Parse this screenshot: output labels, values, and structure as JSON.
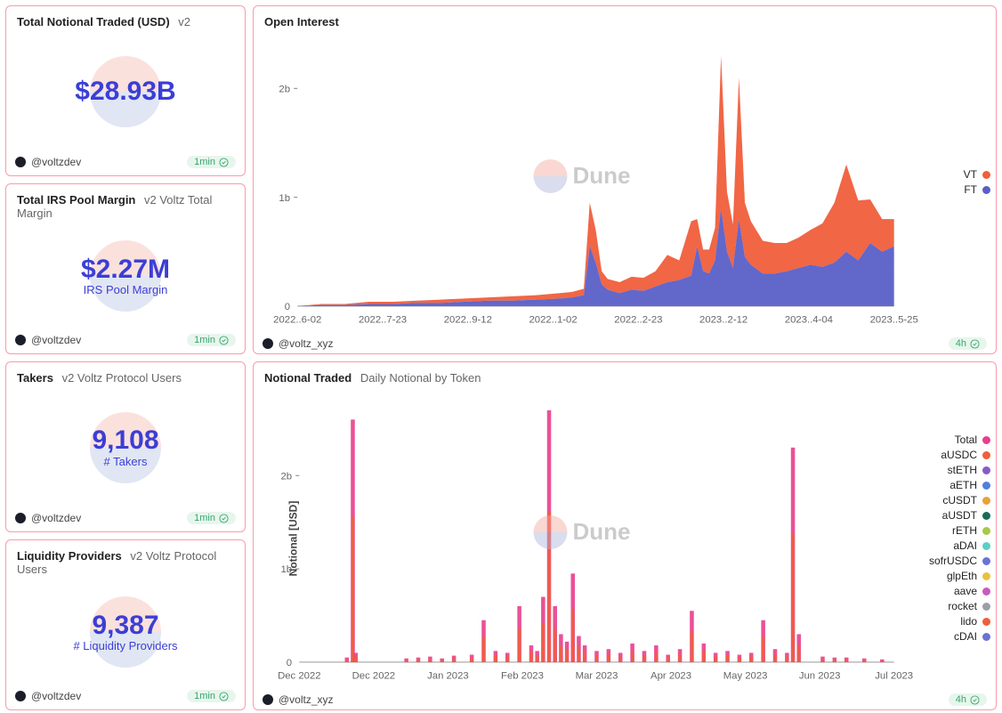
{
  "authors": {
    "dev": "@voltzdev",
    "xyz": "@voltz_xyz"
  },
  "refresh": {
    "short": "1min",
    "long": "4h"
  },
  "colors": {
    "accent": "#3b3ed6",
    "card_border": "#f99ca7",
    "grid": "#e8e8e8",
    "vt": "#f05e3b",
    "ft": "#5a5fc7",
    "refresh_bg": "#e7f6ed",
    "refresh_fg": "#3aa56e"
  },
  "stat_cards": [
    {
      "title": "Total Notional Traded (USD)",
      "subtitle": "v2",
      "value": "$28.93B",
      "label": ""
    },
    {
      "title": "Total IRS Pool Margin",
      "subtitle": "v2 Voltz Total Margin",
      "value": "$2.27M",
      "label": "IRS Pool Margin"
    },
    {
      "title": "Takers",
      "subtitle": "v2 Voltz Protocol Users",
      "value": "9,108",
      "label": "# Takers"
    },
    {
      "title": "Liquidity Providers",
      "subtitle": "v2 Voltz Protocol Users",
      "value": "9,387",
      "label": "# Liquidity Providers"
    }
  ],
  "open_interest": {
    "title": "Open Interest",
    "type": "area",
    "ylim": [
      0,
      2.4
    ],
    "yticks": [
      {
        "v": 1,
        "label": "1b"
      },
      {
        "v": 2,
        "label": "2b"
      }
    ],
    "xticks": [
      "2022..6-02",
      "2022..7-23",
      "2022..9-12",
      "2022..1-02",
      "2022..2-23",
      "2023..2-12",
      "2023..4-04",
      "2023..5-25"
    ],
    "legend": [
      {
        "name": "VT",
        "color": "#f05e3b"
      },
      {
        "name": "FT",
        "color": "#5a5fc7"
      }
    ],
    "series": {
      "comment": "y in billions; FT is lower band, VT is stacked on top (area reaches ft+vt)",
      "x": [
        0,
        0.04,
        0.08,
        0.12,
        0.16,
        0.2,
        0.24,
        0.28,
        0.32,
        0.36,
        0.4,
        0.44,
        0.46,
        0.48,
        0.49,
        0.5,
        0.51,
        0.52,
        0.54,
        0.56,
        0.58,
        0.6,
        0.62,
        0.64,
        0.66,
        0.67,
        0.68,
        0.69,
        0.7,
        0.71,
        0.72,
        0.73,
        0.74,
        0.75,
        0.76,
        0.77,
        0.78,
        0.8,
        0.82,
        0.84,
        0.86,
        0.88,
        0.9,
        0.92,
        0.94,
        0.96,
        0.98,
        1.0
      ],
      "ft": [
        0.0,
        0.01,
        0.01,
        0.02,
        0.02,
        0.03,
        0.03,
        0.04,
        0.05,
        0.05,
        0.06,
        0.07,
        0.08,
        0.1,
        0.55,
        0.4,
        0.2,
        0.15,
        0.12,
        0.15,
        0.14,
        0.18,
        0.22,
        0.24,
        0.28,
        0.55,
        0.32,
        0.3,
        0.42,
        0.9,
        0.5,
        0.35,
        0.8,
        0.45,
        0.38,
        0.34,
        0.3,
        0.3,
        0.32,
        0.35,
        0.38,
        0.36,
        0.4,
        0.5,
        0.42,
        0.58,
        0.5,
        0.55
      ],
      "vt": [
        0.0,
        0.01,
        0.01,
        0.02,
        0.02,
        0.02,
        0.03,
        0.03,
        0.03,
        0.04,
        0.04,
        0.05,
        0.05,
        0.06,
        0.4,
        0.3,
        0.12,
        0.1,
        0.1,
        0.12,
        0.12,
        0.14,
        0.25,
        0.18,
        0.5,
        0.25,
        0.2,
        0.22,
        0.3,
        1.4,
        0.55,
        0.4,
        1.3,
        0.5,
        0.4,
        0.35,
        0.3,
        0.28,
        0.26,
        0.28,
        0.32,
        0.4,
        0.55,
        0.8,
        0.55,
        0.4,
        0.3,
        0.25
      ]
    }
  },
  "notional_traded": {
    "title": "Notional Traded",
    "subtitle": "Daily Notional by Token",
    "type": "bar",
    "ylabel": "Notional [USD]",
    "ylim": [
      0,
      2.8
    ],
    "yticks": [
      {
        "v": 1,
        "label": "1b"
      },
      {
        "v": 2,
        "label": "2b"
      }
    ],
    "xticks": [
      "Dec 2022",
      "Dec 2022",
      "Jan 2023",
      "Feb 2023",
      "Mar 2023",
      "Apr 2023",
      "May 2023",
      "Jun 2023",
      "Jul 2023"
    ],
    "legend": [
      {
        "name": "Total",
        "color": "#e83e8c"
      },
      {
        "name": "aUSDC",
        "color": "#f05e3b"
      },
      {
        "name": "stETH",
        "color": "#8a59c7"
      },
      {
        "name": "aETH",
        "color": "#4f7de0"
      },
      {
        "name": "cUSDT",
        "color": "#e9a13a"
      },
      {
        "name": "aUSDT",
        "color": "#1a6b5c"
      },
      {
        "name": "rETH",
        "color": "#a7c94a"
      },
      {
        "name": "aDAI",
        "color": "#5bcfc0"
      },
      {
        "name": "sofrUSDC",
        "color": "#6a72d6"
      },
      {
        "name": "glpEth",
        "color": "#e9c23a"
      },
      {
        "name": "aave",
        "color": "#c75bbd"
      },
      {
        "name": "rocket",
        "color": "#9aa0a6"
      },
      {
        "name": "lido",
        "color": "#f05e3b"
      },
      {
        "name": "cDAI",
        "color": "#6a72d6"
      }
    ],
    "bars": {
      "x": [
        0.08,
        0.09,
        0.095,
        0.18,
        0.2,
        0.22,
        0.24,
        0.26,
        0.29,
        0.31,
        0.33,
        0.35,
        0.37,
        0.39,
        0.4,
        0.41,
        0.42,
        0.43,
        0.44,
        0.45,
        0.46,
        0.47,
        0.48,
        0.5,
        0.52,
        0.54,
        0.56,
        0.58,
        0.6,
        0.62,
        0.64,
        0.66,
        0.68,
        0.7,
        0.72,
        0.74,
        0.76,
        0.78,
        0.8,
        0.82,
        0.83,
        0.84,
        0.88,
        0.9,
        0.92,
        0.95,
        0.98
      ],
      "h": [
        0.05,
        2.6,
        0.1,
        0.04,
        0.05,
        0.06,
        0.04,
        0.07,
        0.08,
        0.45,
        0.12,
        0.1,
        0.6,
        0.18,
        0.12,
        0.7,
        2.7,
        0.6,
        0.3,
        0.22,
        0.95,
        0.28,
        0.18,
        0.12,
        0.14,
        0.1,
        0.2,
        0.12,
        0.18,
        0.08,
        0.14,
        0.55,
        0.2,
        0.1,
        0.12,
        0.08,
        0.1,
        0.45,
        0.14,
        0.1,
        2.3,
        0.3,
        0.06,
        0.05,
        0.05,
        0.04,
        0.03
      ]
    },
    "bar_color": "#e83e8c",
    "bar_accent": "#f05e3b"
  }
}
